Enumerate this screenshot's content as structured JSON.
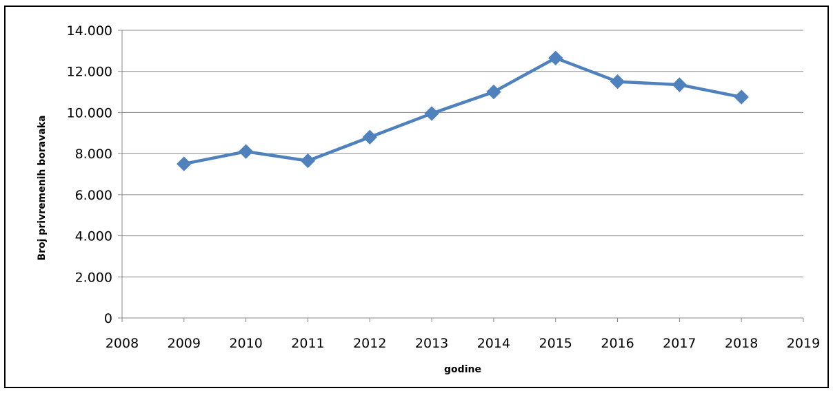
{
  "chart_data": {
    "type": "scatter",
    "mode": "lines+markers",
    "title": "",
    "xlabel": "godine",
    "ylabel": "Broj privremenih boravaka",
    "xlim": [
      2008,
      2019
    ],
    "ylim": [
      0,
      14000
    ],
    "x_ticks": [
      2008,
      2009,
      2010,
      2011,
      2012,
      2013,
      2014,
      2015,
      2016,
      2017,
      2018,
      2019
    ],
    "x_tick_labels": [
      "2008",
      "2009",
      "2010",
      "2011",
      "2012",
      "2013",
      "2014",
      "2015",
      "2016",
      "2017",
      "2018",
      "2019"
    ],
    "y_ticks": [
      0,
      2000,
      4000,
      6000,
      8000,
      10000,
      12000,
      14000
    ],
    "y_tick_labels": [
      "0",
      "2.000",
      "4.000",
      "6.000",
      "8.000",
      "10.000",
      "12.000",
      "14.000"
    ],
    "grid": "horizontal",
    "legend": "none",
    "series": [
      {
        "x": [
          2009,
          2010,
          2011,
          2012,
          2013,
          2014,
          2015,
          2016,
          2017,
          2018
        ],
        "y": [
          7500,
          8100,
          7650,
          8800,
          9950,
          11000,
          12650,
          11500,
          11350,
          10750
        ],
        "color": "#4f81bd",
        "marker": "diamond"
      }
    ]
  }
}
